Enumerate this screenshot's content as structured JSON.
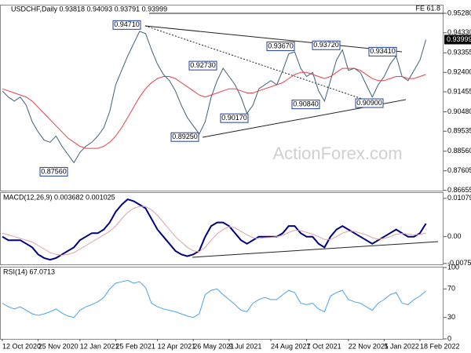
{
  "chart_data": [
    {
      "type": "line",
      "title": "USDCHF,Daily  0.93818 0.94093 0.93791 0.93999",
      "watermark": "ActionForex.com",
      "categories": [
        "12 Oct 2020",
        null,
        null,
        null,
        null,
        null,
        "25 Nov 2020",
        null,
        null,
        null,
        null,
        null,
        null,
        "12 Jan 2021",
        null,
        null,
        null,
        null,
        null,
        "25 Feb 2021",
        null,
        null,
        null,
        null,
        null,
        null,
        "12 Apr 2021",
        null,
        null,
        null,
        null,
        null,
        "26 May 2021",
        null,
        null,
        null,
        null,
        null,
        "9 Jul 2021",
        null,
        null,
        null,
        null,
        null,
        null,
        "24 Aug 2021",
        null,
        null,
        null,
        null,
        null,
        "7 Oct 2021",
        null,
        null,
        null,
        null,
        null,
        null,
        "22 Nov 2021",
        null,
        null,
        null,
        null,
        null,
        "5 Jan 2022",
        null,
        null,
        null,
        null,
        null,
        "18 Feb 2022",
        null
      ],
      "series": [
        {
          "name": "USDCHF",
          "color": "#3d6078",
          "values": [
            0.915,
            0.912,
            0.91,
            0.912,
            0.908,
            0.9,
            0.895,
            0.891,
            0.89,
            0.893,
            0.888,
            0.884,
            0.88,
            0.885,
            0.888,
            0.89,
            0.893,
            0.897,
            0.905,
            0.918,
            0.925,
            0.932,
            0.938,
            0.944,
            0.943,
            0.935,
            0.928,
            0.923,
            0.92,
            0.915,
            0.908,
            0.902,
            0.898,
            0.894,
            0.9,
            0.912,
            0.92,
            0.926,
            0.922,
            0.918,
            0.912,
            0.904,
            0.908,
            0.916,
            0.918,
            0.92,
            0.918,
            0.925,
            0.933,
            0.934,
            0.926,
            0.922,
            0.924,
            0.915,
            0.91,
            0.92,
            0.93,
            0.935,
            0.925,
            0.926,
            0.924,
            0.918,
            0.912,
            0.918,
            0.922,
            0.928,
            0.932,
            0.922,
            0.92,
            0.925,
            0.93,
            0.93999
          ]
        },
        {
          "name": "MA",
          "color": "#e8414a",
          "values": [
            0.916,
            0.915,
            0.914,
            0.913,
            0.912,
            0.91,
            0.907,
            0.904,
            0.901,
            0.898,
            0.895,
            0.892,
            0.89,
            0.888,
            0.887,
            0.887,
            0.887,
            0.888,
            0.89,
            0.893,
            0.897,
            0.902,
            0.907,
            0.912,
            0.916,
            0.919,
            0.921,
            0.922,
            0.922,
            0.921,
            0.919,
            0.917,
            0.915,
            0.913,
            0.912,
            0.913,
            0.914,
            0.915,
            0.916,
            0.916,
            0.915,
            0.914,
            0.914,
            0.915,
            0.916,
            0.917,
            0.918,
            0.919,
            0.921,
            0.923,
            0.924,
            0.924,
            0.923,
            0.922,
            0.921,
            0.922,
            0.924,
            0.926,
            0.926,
            0.926,
            0.925,
            0.923,
            0.921,
            0.92,
            0.92,
            0.921,
            0.922,
            0.922,
            0.921,
            0.921,
            0.922,
            0.923
          ]
        }
      ],
      "ylim": [
        0.8664,
        0.9566
      ],
      "yticks": [
        {
          "value": 0.9528,
          "label": "0.95280"
        },
        {
          "value": 0.9433,
          "label": "0.94330"
        },
        {
          "value": 0.93355,
          "label": "0.93355"
        },
        {
          "value": 0.924,
          "label": "0.92400"
        },
        {
          "value": 0.91455,
          "label": "0.91455"
        },
        {
          "value": 0.9048,
          "label": "0.90480"
        },
        {
          "value": 0.89535,
          "label": "0.89535"
        },
        {
          "value": 0.8856,
          "label": "0.88560"
        },
        {
          "value": 0.87605,
          "label": "0.87605"
        },
        {
          "value": 0.86655,
          "label": "0.86655"
        }
      ],
      "current_price": 0.93999,
      "fe_level": {
        "value": 0.9528,
        "label": "FE 61.8"
      },
      "annotations": [
        {
          "value": 0.9471,
          "label": "0.94710"
        },
        {
          "value": 0.9273,
          "label": "0.92730"
        },
        {
          "value": 0.9367,
          "label": "0.93670"
        },
        {
          "value": 0.9372,
          "label": "0.93720"
        },
        {
          "value": 0.9341,
          "label": "0.93410"
        },
        {
          "value": 0.9084,
          "label": "0.90840"
        },
        {
          "value": 0.909,
          "label": "0.90900"
        },
        {
          "value": 0.9017,
          "label": "0.90170"
        },
        {
          "value": 0.8925,
          "label": "0.89250"
        },
        {
          "value": 0.8756,
          "label": "0.87560"
        }
      ]
    },
    {
      "type": "line",
      "title": "MACD(12,26,9) 0.003682 0.001025",
      "series": [
        {
          "name": "MACD",
          "color": "#000080",
          "values": [
            0.0,
            -0.001,
            -0.001,
            -0.001,
            -0.002,
            -0.003,
            -0.005,
            -0.006,
            -0.0065,
            -0.006,
            -0.005,
            -0.004,
            -0.003,
            -0.001,
            0.0,
            0.001,
            0.001,
            0.002,
            0.004,
            0.007,
            0.009,
            0.0105,
            0.01,
            0.009,
            0.008,
            0.005,
            0.002,
            0.0,
            -0.002,
            -0.004,
            -0.005,
            -0.0055,
            -0.005,
            -0.004,
            0.0,
            0.003,
            0.004,
            0.004,
            0.003,
            0.001,
            -0.001,
            -0.002,
            -0.001,
            0.0,
            0.0,
            0.0,
            0.0,
            0.001,
            0.003,
            0.003,
            0.001,
            0.0,
            0.0,
            -0.002,
            -0.003,
            0.0,
            0.002,
            0.003,
            0.002,
            0.001,
            0.0,
            -0.001,
            -0.002,
            -0.001,
            0.0,
            0.001,
            0.002,
            0.001,
            0.0,
            0.0,
            0.001,
            0.003682
          ]
        },
        {
          "name": "Signal",
          "color": "#d9a3a3",
          "values": [
            0.001,
            0.0005,
            0.0,
            -0.0005,
            -0.001,
            -0.0015,
            -0.0025,
            -0.0035,
            -0.0045,
            -0.005,
            -0.0052,
            -0.005,
            -0.0045,
            -0.0035,
            -0.0025,
            -0.0015,
            -0.0005,
            0.0005,
            0.0015,
            0.003,
            0.005,
            0.0068,
            0.008,
            0.0085,
            0.0085,
            0.0075,
            0.006,
            0.004,
            0.002,
            0.0,
            -0.0015,
            -0.003,
            -0.004,
            -0.0042,
            -0.003,
            -0.001,
            0.0008,
            0.002,
            0.0028,
            0.0025,
            0.0015,
            0.0005,
            -0.0003,
            -0.0005,
            -0.0003,
            -0.0002,
            0.0,
            0.0004,
            0.0012,
            0.0018,
            0.0017,
            0.0012,
            0.0007,
            0.0,
            -0.0008,
            -0.0008,
            0.0,
            0.001,
            0.0015,
            0.0015,
            0.001,
            0.0005,
            -0.0003,
            -0.0007,
            -0.0005,
            0.0,
            0.0007,
            0.0009,
            0.0007,
            0.0005,
            0.0006,
            0.001025
          ]
        }
      ],
      "ylim": [
        -0.0078,
        0.0123
      ],
      "yticks": [
        0.010797,
        {
          "value": 0,
          "label": "0.00"
        },
        -0.007548
      ]
    },
    {
      "type": "line",
      "title": "RSI(14) 67.0713",
      "series": [
        {
          "name": "RSI",
          "color": "#4aa3ea",
          "values": [
            50,
            45,
            42,
            45,
            40,
            35,
            33,
            35,
            38,
            42,
            36,
            32,
            30,
            40,
            45,
            48,
            52,
            58,
            70,
            78,
            80,
            82,
            78,
            80,
            72,
            50,
            45,
            42,
            40,
            38,
            35,
            32,
            30,
            35,
            62,
            68,
            70,
            62,
            55,
            48,
            40,
            38,
            50,
            55,
            58,
            55,
            55,
            62,
            68,
            65,
            50,
            48,
            50,
            42,
            38,
            60,
            65,
            68,
            55,
            52,
            50,
            45,
            40,
            50,
            55,
            62,
            65,
            50,
            48,
            55,
            60,
            67.0713
          ]
        }
      ],
      "ylim": [
        0,
        100
      ],
      "yticks": [
        100,
        70,
        30,
        0
      ]
    }
  ]
}
